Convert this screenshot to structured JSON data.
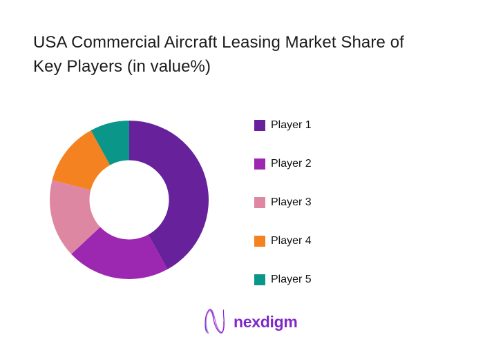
{
  "header": {
    "title_lines": [
      "USA Commercial Aircraft Leasing Market Share of",
      "Key Players (in value%)"
    ],
    "title_color": "#1b1b1b"
  },
  "chart_data": {
    "type": "pie",
    "subtype": "donut",
    "title": "USA Commercial Aircraft Leasing Market Share of Key Players (in value%)",
    "unit": "value %",
    "labels": [
      "Player 1",
      "Player 2",
      "Player 3",
      "Player 4",
      "Player 5"
    ],
    "values": [
      42,
      21,
      16,
      13,
      8
    ],
    "colors": [
      "#67219A",
      "#9C27B0",
      "#DE87A3",
      "#F58220",
      "#0A9689"
    ],
    "start_angle_deg": 0,
    "direction": "clockwise",
    "inner_radius_ratio": 0.5,
    "legend_position": "right",
    "data_labels_shown": false,
    "background": "#ffffff"
  },
  "legend": {
    "items": [
      {
        "label": "Player 1",
        "color": "#67219A"
      },
      {
        "label": "Player 2",
        "color": "#9C27B0"
      },
      {
        "label": "Player 3",
        "color": "#DE87A3"
      },
      {
        "label": "Player 4",
        "color": "#F58220"
      },
      {
        "label": "Player 5",
        "color": "#0A9689"
      }
    ]
  },
  "footer": {
    "brand_name": "nexdigm",
    "brand_text_color": "#7E2AC8",
    "logo_mark": "nexdigm-wave-n",
    "logo_gradient": [
      "#5B2BD6",
      "#9A2BD0",
      "#6F2BE2"
    ]
  }
}
